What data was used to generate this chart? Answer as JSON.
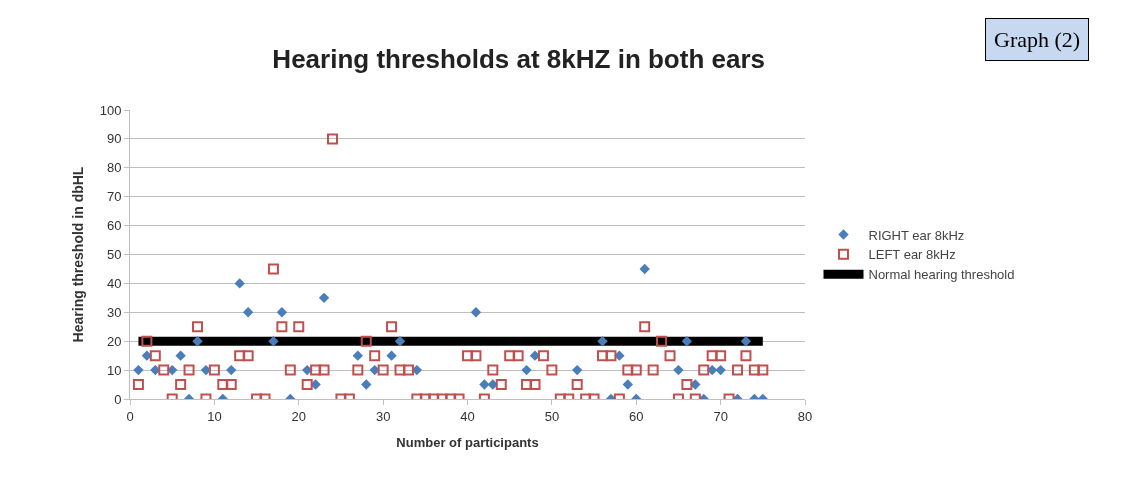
{
  "chart_data": {
    "type": "scatter",
    "title": "Hearing thresholds at 8kHZ in both ears",
    "xlabel": "Number of participants",
    "ylabel": "Hearing threshold in dbHL",
    "x": [
      1,
      2,
      3,
      4,
      5,
      6,
      7,
      8,
      9,
      10,
      11,
      12,
      13,
      14,
      15,
      16,
      17,
      18,
      19,
      20,
      21,
      22,
      23,
      24,
      25,
      26,
      27,
      28,
      29,
      30,
      31,
      32,
      33,
      34,
      35,
      36,
      37,
      38,
      39,
      40,
      41,
      42,
      43,
      44,
      45,
      46,
      47,
      48,
      49,
      50,
      51,
      52,
      53,
      54,
      55,
      56,
      57,
      58,
      59,
      60,
      61,
      62,
      63,
      64,
      65,
      66,
      67,
      68,
      69,
      70,
      71,
      72,
      73,
      74,
      75
    ],
    "series": [
      {
        "name": "RIGHT ear 8kHz",
        "color": "#4a7ebb",
        "marker": "diamond",
        "values": [
          10,
          15,
          10,
          null,
          10,
          15,
          0,
          20,
          10,
          null,
          0,
          10,
          40,
          30,
          null,
          null,
          20,
          30,
          0,
          null,
          10,
          5,
          35,
          null,
          null,
          null,
          15,
          5,
          10,
          null,
          15,
          20,
          null,
          10,
          null,
          null,
          null,
          null,
          null,
          null,
          30,
          5,
          5,
          null,
          null,
          null,
          10,
          15,
          null,
          null,
          null,
          null,
          10,
          null,
          null,
          20,
          0,
          15,
          5,
          0,
          45,
          null,
          null,
          null,
          10,
          20,
          5,
          0,
          10,
          10,
          null,
          0,
          20,
          0,
          0
        ]
      },
      {
        "name": "LEFT ear 8kHz",
        "color": "#c0504d",
        "marker": "square",
        "values": [
          5,
          20,
          15,
          10,
          0,
          5,
          10,
          25,
          0,
          10,
          5,
          5,
          15,
          15,
          0,
          0,
          45,
          25,
          10,
          25,
          5,
          10,
          10,
          90,
          0,
          0,
          10,
          20,
          15,
          10,
          25,
          10,
          10,
          0,
          0,
          0,
          0,
          0,
          0,
          15,
          15,
          0,
          10,
          5,
          15,
          15,
          5,
          5,
          15,
          10,
          0,
          0,
          5,
          0,
          0,
          15,
          15,
          0,
          10,
          10,
          25,
          10,
          20,
          15,
          0,
          5,
          0,
          10,
          15,
          15,
          0,
          10,
          15,
          10,
          10
        ]
      },
      {
        "name": "Normal hearing threshold",
        "type": "line",
        "color": "#000000",
        "x": [
          1,
          75
        ],
        "values": [
          20,
          20
        ]
      }
    ],
    "annotations": [
      "Graph (2)"
    ],
    "xlim": [
      0,
      80
    ],
    "xticks": [
      0,
      10,
      20,
      30,
      40,
      50,
      60,
      70,
      80
    ],
    "ylim": [
      0,
      100
    ],
    "yticks": [
      0,
      10,
      20,
      30,
      40,
      50,
      60,
      70,
      80,
      90,
      100
    ],
    "grid": "y",
    "legend": "right"
  }
}
